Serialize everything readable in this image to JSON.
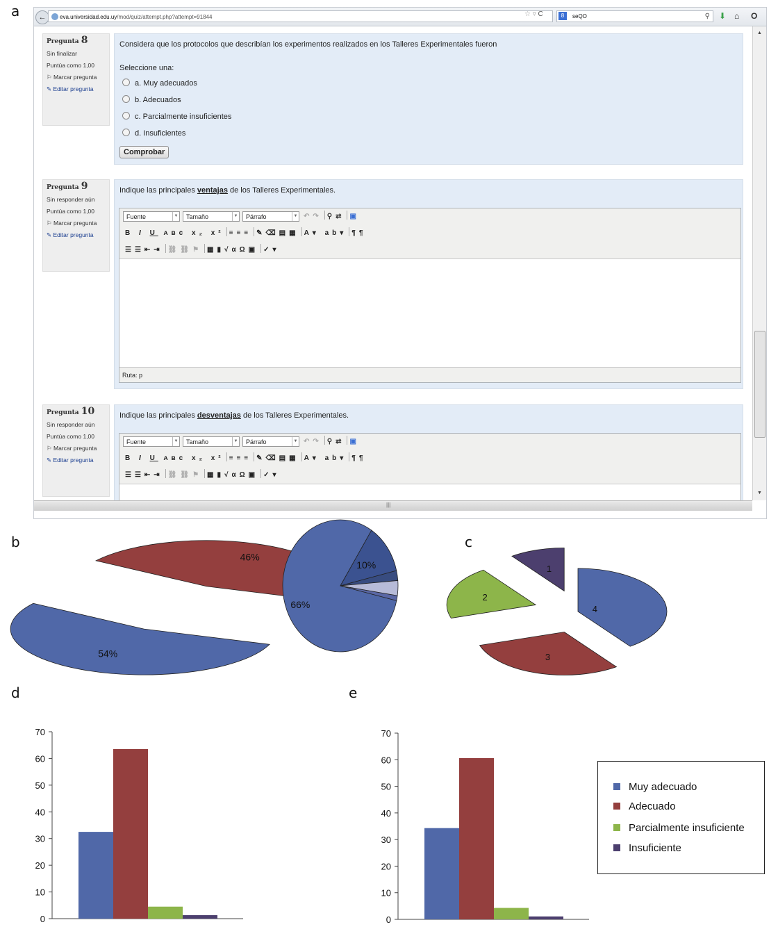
{
  "panel_labels": {
    "a": "a",
    "b": "b",
    "c": "c",
    "d": "d",
    "e": "e"
  },
  "browser": {
    "url_domain": "eva.universidad.edu.uy",
    "url_path": "/mod/quiz/attempt.php?attempt=91844",
    "search_text": "seQO",
    "icons": [
      "back-icon",
      "globe-icon",
      "bookmark-star-icon",
      "reload-icon",
      "search-engine-icon",
      "magnifier-icon",
      "download-icon",
      "home-icon",
      "addon-icon"
    ]
  },
  "questions": [
    {
      "label": "Pregunta",
      "number": "8",
      "status": "Sin finalizar",
      "score": "Puntúa como 1,00",
      "flag": "Marcar pregunta",
      "edit": "Editar pregunta",
      "text": "Considera que los protocolos que describían los experimentos realizados en los Talleres Experimentales fueron",
      "prompt": "Seleccione una:",
      "options": [
        "a. Muy adecuados",
        "b. Adecuados",
        "c. Parcialmente insuficientes",
        "d. Insuficientes"
      ],
      "button": "Comprobar"
    },
    {
      "label": "Pregunta",
      "number": "9",
      "status": "Sin responder aún",
      "score": "Puntúa como 1,00",
      "flag": "Marcar pregunta",
      "edit": "Editar pregunta",
      "text_before": "Indique las principales",
      "text_bold": "ventajas",
      "text_after": "de los Talleres Experimentales.",
      "path": "Ruta: p"
    },
    {
      "label": "Pregunta",
      "number": "10",
      "status": "Sin responder aún",
      "score": "Puntúa como 1,00",
      "flag": "Marcar pregunta",
      "edit": "Editar pregunta",
      "text_before": "Indique las principales",
      "text_bold": "desventajas",
      "text_after": "de los Talleres Experimentales."
    }
  ],
  "editor": {
    "font_select": "Fuente",
    "size_select": "Tamaño",
    "format_select": "Párrafo"
  },
  "colors": {
    "blue": "#5068a8",
    "red": "#943f3e",
    "green": "#8db54a",
    "purple": "#4c3f6e",
    "lavender": "#b7bbd8"
  },
  "chart_data": [
    {
      "panel": "b",
      "type": "pie",
      "slices": [
        {
          "label": "46%",
          "value": 46,
          "color": "#943f3e"
        },
        {
          "label": "54%",
          "value": 54,
          "color": "#5068a8"
        }
      ]
    },
    {
      "panel": "b",
      "type": "pie",
      "slices": [
        {
          "label": "66%",
          "value": 66,
          "color": "#5068a8"
        },
        {
          "label": "10%",
          "value": 10,
          "color": "#3b5290"
        },
        {
          "label": "",
          "value": 2,
          "color": "#384c80"
        },
        {
          "label": "",
          "value": 3,
          "color": "#b7bbd8"
        },
        {
          "label": "",
          "value": 1,
          "color": "#5a67a5"
        }
      ]
    },
    {
      "panel": "c",
      "type": "pie",
      "slices": [
        {
          "label": "4",
          "value": 4,
          "color": "#5068a8"
        },
        {
          "label": "3",
          "value": 3,
          "color": "#943f3e"
        },
        {
          "label": "2",
          "value": 2,
          "color": "#8db54a"
        },
        {
          "label": "1",
          "value": 1,
          "color": "#4c3f6e"
        }
      ]
    },
    {
      "panel": "d",
      "type": "bar",
      "ylim": [
        0,
        70
      ],
      "yticks": [
        "0",
        "10",
        "20",
        "30",
        "40",
        "50",
        "60",
        "70"
      ],
      "series": [
        {
          "name": "Muy adecuado",
          "values": [
            32.5
          ],
          "color": "#5068a8"
        },
        {
          "name": "Adecuado",
          "values": [
            63.5
          ],
          "color": "#943f3e"
        },
        {
          "name": "Parcialmente insuficiente",
          "values": [
            4.5
          ],
          "color": "#8db54a"
        },
        {
          "name": "Insuficiente",
          "values": [
            1.3
          ],
          "color": "#4c3f6e"
        }
      ]
    },
    {
      "panel": "e",
      "type": "bar",
      "ylim": [
        0,
        70
      ],
      "yticks": [
        "0",
        "10",
        "20",
        "30",
        "40",
        "50",
        "60",
        "70"
      ],
      "series": [
        {
          "name": "Muy adecuado",
          "values": [
            34.3
          ],
          "color": "#5068a8"
        },
        {
          "name": "Adecuado",
          "values": [
            60.6
          ],
          "color": "#943f3e"
        },
        {
          "name": "Parcialmente insuficiente",
          "values": [
            4.3
          ],
          "color": "#8db54a"
        },
        {
          "name": "Insuficiente",
          "values": [
            1.1
          ],
          "color": "#4c3f6e"
        }
      ]
    }
  ],
  "legend": [
    {
      "label": "Muy adecuado",
      "color": "#5068a8"
    },
    {
      "label": "Adecuado",
      "color": "#943f3e"
    },
    {
      "label": "Parcialmente insuficiente",
      "color": "#8db54a"
    },
    {
      "label": "Insuficiente",
      "color": "#4c3f6e"
    }
  ]
}
